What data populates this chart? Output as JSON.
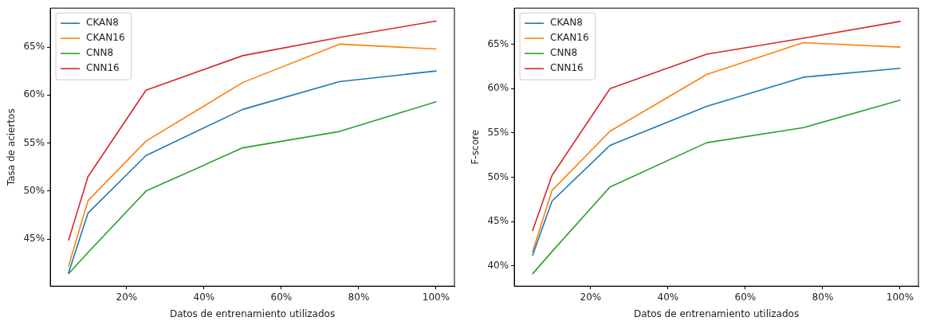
{
  "chart_data": [
    {
      "type": "line",
      "xlabel": "Datos de entrenamiento utilizados",
      "ylabel": "Tasa de aciertos",
      "x": [
        5,
        10,
        25,
        50,
        75,
        100
      ],
      "xlim": [
        0.25,
        104.75
      ],
      "xticks": [
        {
          "value": 20,
          "label": "20%"
        },
        {
          "value": 40,
          "label": "40%"
        },
        {
          "value": 60,
          "label": "60%"
        },
        {
          "value": 80,
          "label": "80%"
        },
        {
          "value": 100,
          "label": "100%"
        }
      ],
      "ylim": [
        40.1,
        69.05
      ],
      "yticks": [
        {
          "value": 45,
          "label": "45%"
        },
        {
          "value": 50,
          "label": "50%"
        },
        {
          "value": 55,
          "label": "55%"
        },
        {
          "value": 60,
          "label": "60%"
        },
        {
          "value": 65,
          "label": "65%"
        }
      ],
      "grid": false,
      "legend": "top left",
      "marker": "none",
      "line_style": "solid",
      "series": [
        {
          "name": "CKAN8",
          "color": "#1f77b4",
          "values": [
            41.5,
            47.7,
            53.7,
            58.5,
            61.4,
            62.5
          ]
        },
        {
          "name": "CKAN16",
          "color": "#ff7f0e",
          "values": [
            42.2,
            49.0,
            55.2,
            61.3,
            65.3,
            64.8
          ]
        },
        {
          "name": "CNN8",
          "color": "#2ca02c",
          "values": [
            41.4,
            43.6,
            50.0,
            54.5,
            56.2,
            59.3
          ]
        },
        {
          "name": "CNN16",
          "color": "#d62728",
          "values": [
            44.9,
            51.5,
            60.5,
            64.1,
            66.0,
            67.7
          ]
        }
      ]
    },
    {
      "type": "line",
      "xlabel": "Datos de entrenamiento utilizados",
      "ylabel": "F-score",
      "x": [
        5,
        10,
        25,
        50,
        75,
        100
      ],
      "xlim": [
        0.25,
        104.75
      ],
      "xticks": [
        {
          "value": 20,
          "label": "20%"
        },
        {
          "value": 40,
          "label": "40%"
        },
        {
          "value": 60,
          "label": "60%"
        },
        {
          "value": 80,
          "label": "80%"
        },
        {
          "value": 100,
          "label": "100%"
        }
      ],
      "ylim": [
        37.7,
        69.1
      ],
      "yticks": [
        {
          "value": 40,
          "label": "40%"
        },
        {
          "value": 45,
          "label": "45%"
        },
        {
          "value": 50,
          "label": "50%"
        },
        {
          "value": 55,
          "label": "55%"
        },
        {
          "value": 60,
          "label": "60%"
        },
        {
          "value": 65,
          "label": "65%"
        }
      ],
      "grid": false,
      "legend": "top left",
      "marker": "none",
      "line_style": "solid",
      "series": [
        {
          "name": "CKAN8",
          "color": "#1f77b4",
          "values": [
            41.2,
            47.3,
            53.6,
            58.0,
            61.3,
            62.3
          ]
        },
        {
          "name": "CKAN16",
          "color": "#ff7f0e",
          "values": [
            41.6,
            48.5,
            55.2,
            61.6,
            65.2,
            64.7
          ]
        },
        {
          "name": "CNN8",
          "color": "#2ca02c",
          "values": [
            39.1,
            41.6,
            48.9,
            53.9,
            55.6,
            58.7
          ]
        },
        {
          "name": "CNN16",
          "color": "#d62728",
          "values": [
            44.0,
            50.2,
            60.0,
            63.9,
            65.7,
            67.6
          ]
        }
      ]
    }
  ]
}
